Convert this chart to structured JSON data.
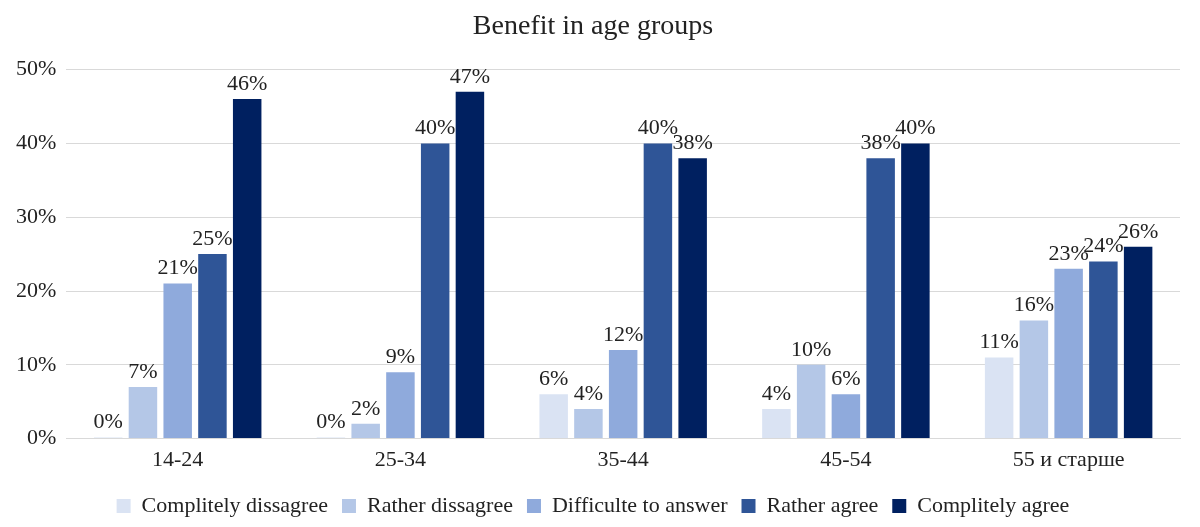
{
  "chart_data": {
    "type": "bar",
    "title": "Benefit in age groups",
    "categories": [
      "14-24",
      "25-34",
      "35-44",
      "45-54",
      "55 и старше"
    ],
    "series": [
      {
        "name": "Complitely dissagree",
        "color": "#dae3f3",
        "values": [
          0,
          0,
          6,
          4,
          11
        ],
        "value_labels": [
          "0%",
          "0%",
          "6%",
          "4%",
          "11%"
        ]
      },
      {
        "name": "Rather dissagree",
        "color": "#b4c7e7",
        "values": [
          7,
          2,
          4,
          10,
          16
        ],
        "value_labels": [
          "7%",
          "2%",
          "4%",
          "10%",
          "16%"
        ]
      },
      {
        "name": "Difficulte to answer",
        "color": "#8faadc",
        "values": [
          21,
          9,
          12,
          6,
          23
        ],
        "value_labels": [
          "21%",
          "9%",
          "12%",
          "6%",
          "23%"
        ]
      },
      {
        "name": "Rather agree",
        "color": "#2f5597",
        "values": [
          25,
          40,
          40,
          38,
          24
        ],
        "value_labels": [
          "25%",
          "40%",
          "40%",
          "38%",
          "24%"
        ]
      },
      {
        "name": "Complitely agree",
        "color": "#002060",
        "values": [
          46,
          47,
          38,
          40,
          26
        ],
        "value_labels": [
          "46%",
          "47%",
          "38%",
          "40%",
          "26%"
        ]
      }
    ],
    "ylim": [
      0,
      50
    ],
    "yticks": [
      {
        "value": 0,
        "label": "0%"
      },
      {
        "value": 10,
        "label": "10%"
      },
      {
        "value": 20,
        "label": "20%"
      },
      {
        "value": 30,
        "label": "30%"
      },
      {
        "value": 40,
        "label": "40%"
      },
      {
        "value": 50,
        "label": "50%"
      }
    ],
    "grid": "y",
    "legend": "bottom"
  }
}
